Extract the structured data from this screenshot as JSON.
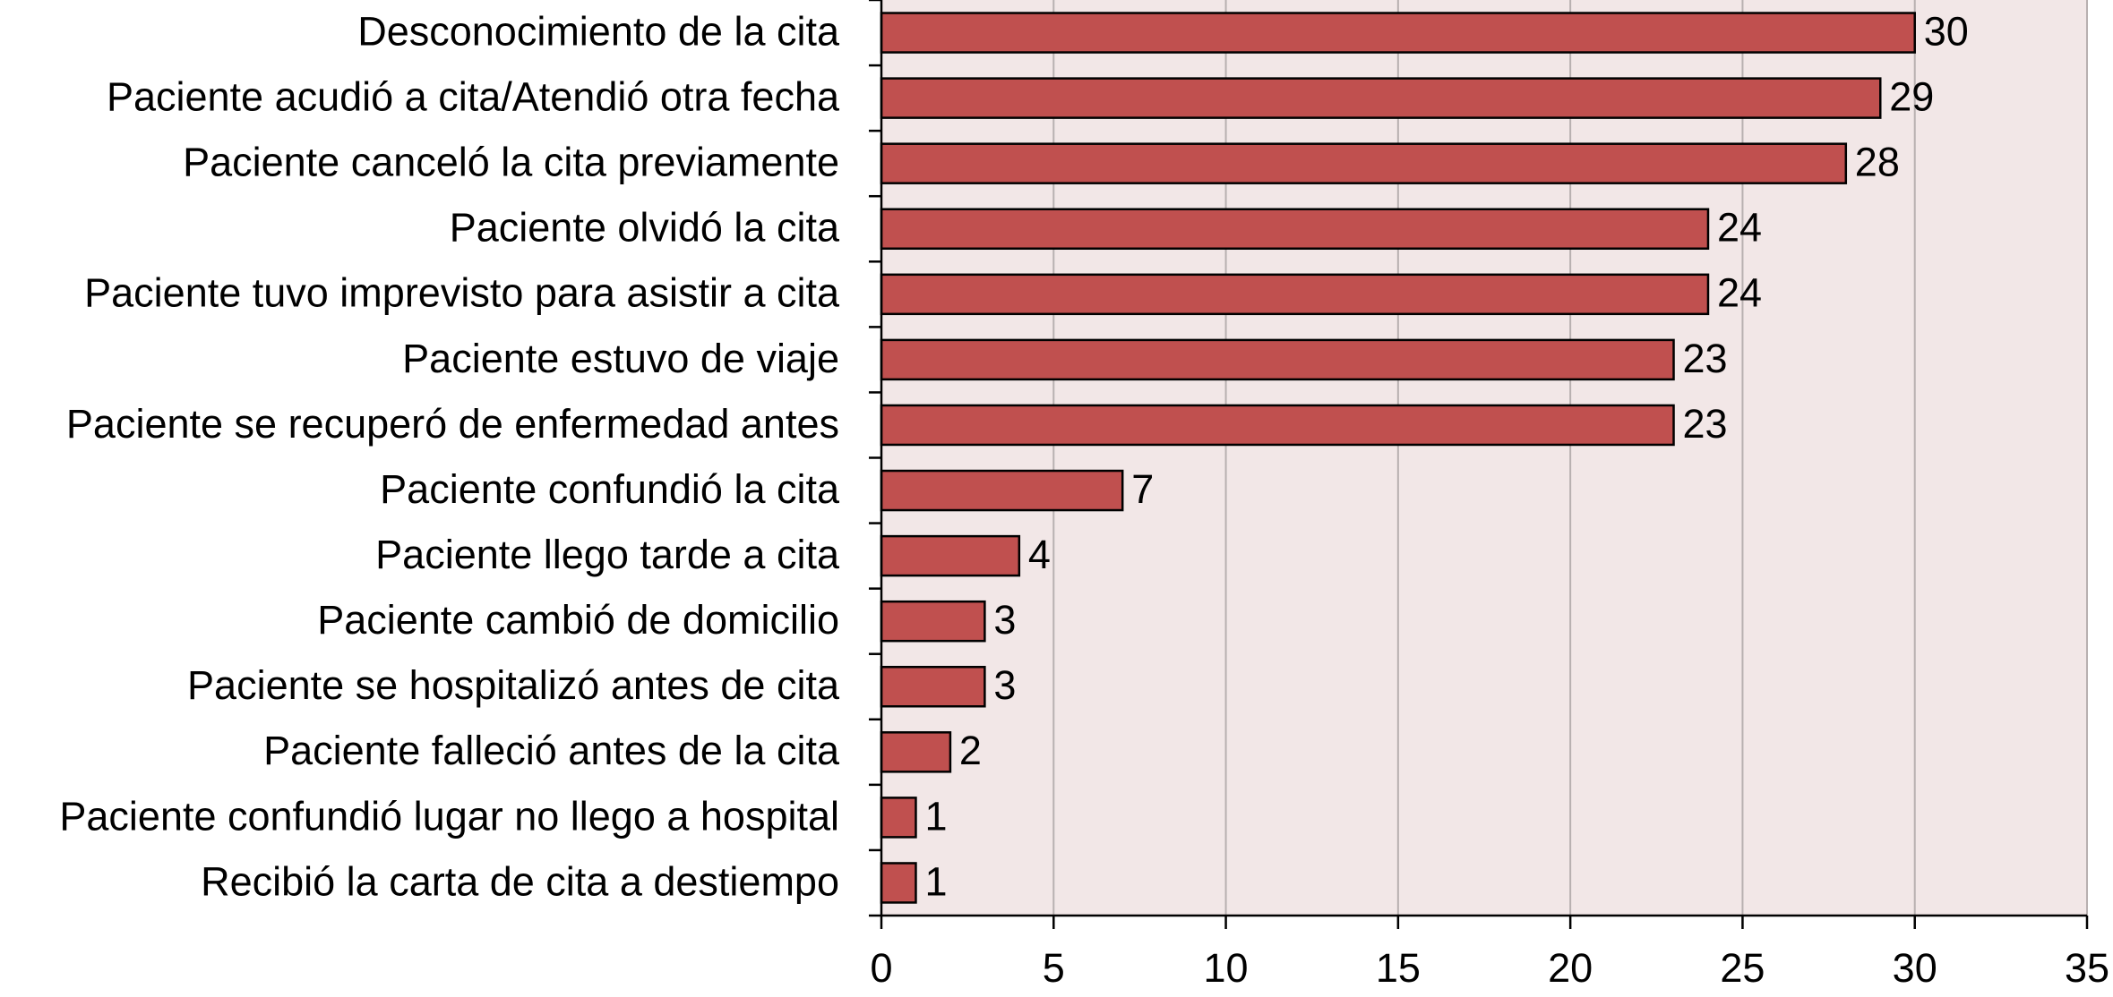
{
  "chart_data": {
    "type": "bar",
    "orientation": "horizontal",
    "categories": [
      "Desconocimiento de la cita",
      "Paciente acudió a cita/Atendió otra fecha",
      "Paciente canceló la cita previamente",
      "Paciente olvidó la cita",
      "Paciente tuvo imprevisto para asistir a cita",
      "Paciente estuvo de viaje",
      "Paciente se recuperó de enfermedad antes",
      "Paciente confundió la cita",
      "Paciente llego tarde a cita",
      "Paciente cambió de domicilio",
      "Paciente se hospitalizó antes de cita",
      "Paciente falleció antes de la cita",
      "Paciente confundió lugar no llego a hospital",
      "Recibió la carta de cita a destiempo"
    ],
    "values": [
      30,
      29,
      28,
      24,
      24,
      23,
      23,
      7,
      4,
      3,
      3,
      2,
      1,
      1
    ],
    "color": "#c0504f",
    "xlim": [
      0,
      35
    ],
    "xticks": [
      0,
      5,
      10,
      15,
      20,
      25,
      30,
      35
    ],
    "grid": true
  }
}
